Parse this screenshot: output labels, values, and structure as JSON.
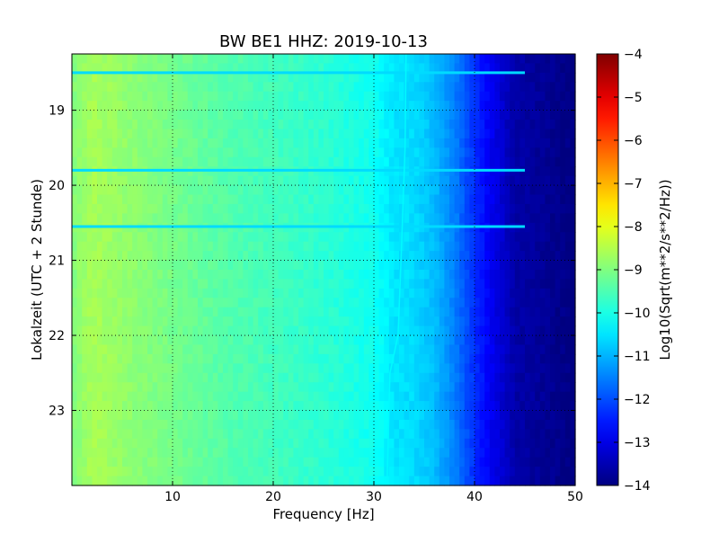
{
  "chart_data": {
    "type": "heatmap",
    "title": "BW BE1 HHZ: 2019-10-13",
    "xlabel": "Frequency [Hz]",
    "ylabel": "Lokalzeit (UTC + 2 Stunde)",
    "xlim": [
      0,
      50
    ],
    "ylim_hours": [
      18.25,
      24.0
    ],
    "y_inverted": true,
    "x_ticks": [
      10,
      20,
      30,
      40,
      50
    ],
    "y_ticks": [
      19,
      20,
      21,
      22,
      23
    ],
    "grid": true,
    "colormap": "jet",
    "colorbar": {
      "label": "Log10(Sqrt(m**2/s**2/Hz))",
      "vmin": -14,
      "vmax": -4,
      "ticks": [
        -4,
        -5,
        -6,
        -7,
        -8,
        -9,
        -10,
        -11,
        -12,
        -13,
        -14
      ]
    },
    "frequency_profile": {
      "freq_hz": [
        0,
        2,
        5,
        10,
        15,
        20,
        25,
        30,
        32,
        34,
        36,
        38,
        40,
        42,
        44,
        50
      ],
      "value": [
        -9.0,
        -8.6,
        -8.8,
        -9.1,
        -9.4,
        -9.6,
        -9.8,
        -10.1,
        -10.5,
        -10.6,
        -10.9,
        -11.5,
        -12.3,
        -13.0,
        -13.6,
        -14.0
      ]
    },
    "horizontal_lines": [
      {
        "time_hours": 18.5,
        "fmax_hz": 45,
        "value": -10.6
      },
      {
        "time_hours": 19.8,
        "fmax_hz": 45,
        "value": -10.6
      },
      {
        "time_hours": 20.55,
        "fmax_hz": 45,
        "value": -10.6
      }
    ],
    "resonance_line": {
      "time_hours": [
        18.25,
        19.5,
        21.0,
        22.0,
        22.5,
        24.0
      ],
      "freq_hz": [
        33.2,
        33.1,
        32.7,
        32.4,
        31.6,
        31.3
      ],
      "value": -10.3
    }
  }
}
